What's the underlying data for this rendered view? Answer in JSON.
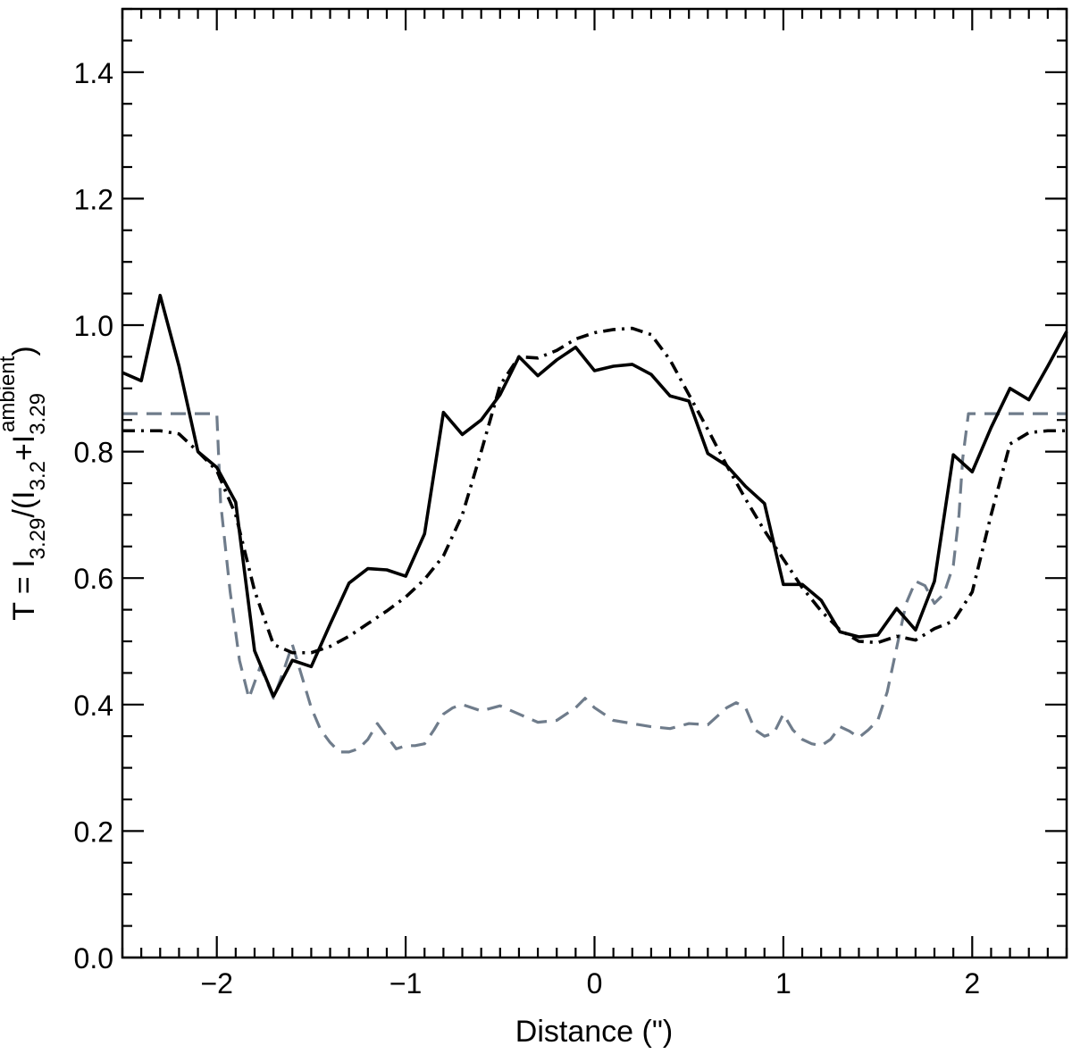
{
  "chart_data": {
    "type": "line",
    "xlabel": "Distance (\")",
    "ylabel": {
      "prefix": "T = I",
      "sub1": "3.29",
      "mid": "/(I",
      "sub2": "3.2",
      "plus": "+I",
      "sub3": "3.29",
      "sup3": "ambient",
      "suffix": ")"
    },
    "xlim": [
      -2.5,
      2.5
    ],
    "ylim": [
      0.0,
      1.5
    ],
    "x_ticks": [
      {
        "v": -2,
        "label": "−2"
      },
      {
        "v": -1,
        "label": "−1"
      },
      {
        "v": 0,
        "label": "0"
      },
      {
        "v": 1,
        "label": "1"
      },
      {
        "v": 2,
        "label": "2"
      }
    ],
    "y_ticks": [
      {
        "v": 0.0,
        "label": "0.0"
      },
      {
        "v": 0.2,
        "label": "0.2"
      },
      {
        "v": 0.4,
        "label": "0.4"
      },
      {
        "v": 0.6,
        "label": "0.6"
      },
      {
        "v": 0.8,
        "label": "0.8"
      },
      {
        "v": 1.0,
        "label": "1.0"
      },
      {
        "v": 1.2,
        "label": "1.2"
      },
      {
        "v": 1.4,
        "label": "1.4"
      }
    ],
    "grid": false,
    "colors": {
      "solid": "#000000",
      "dashdot": "#000000",
      "dashed": "#6f7c8b"
    },
    "series": [
      {
        "style": "solid",
        "x": [
          -2.5,
          -2.4,
          -2.3,
          -2.2,
          -2.1,
          -2.0,
          -1.9,
          -1.8,
          -1.7,
          -1.6,
          -1.5,
          -1.4,
          -1.3,
          -1.2,
          -1.1,
          -1.0,
          -0.9,
          -0.8,
          -0.7,
          -0.6,
          -0.5,
          -0.4,
          -0.3,
          -0.2,
          -0.1,
          0.0,
          0.1,
          0.2,
          0.3,
          0.4,
          0.5,
          0.6,
          0.7,
          0.8,
          0.9,
          1.0,
          1.1,
          1.2,
          1.3,
          1.4,
          1.5,
          1.6,
          1.7,
          1.8,
          1.9,
          2.0,
          2.1,
          2.2,
          2.3,
          2.4,
          2.5
        ],
        "y": [
          0.925,
          0.912,
          1.047,
          0.935,
          0.8,
          0.775,
          0.72,
          0.485,
          0.413,
          0.47,
          0.46,
          0.527,
          0.592,
          0.615,
          0.613,
          0.603,
          0.67,
          0.862,
          0.827,
          0.85,
          0.89,
          0.95,
          0.92,
          0.945,
          0.965,
          0.928,
          0.935,
          0.938,
          0.922,
          0.888,
          0.88,
          0.797,
          0.778,
          0.745,
          0.718,
          0.59,
          0.59,
          0.565,
          0.515,
          0.507,
          0.51,
          0.552,
          0.518,
          0.595,
          0.795,
          0.768,
          0.838,
          0.9,
          0.882,
          0.935,
          0.99
        ]
      },
      {
        "style": "dashdot",
        "x": [
          -2.5,
          -2.3,
          -2.2,
          -2.1,
          -2.0,
          -1.9,
          -1.8,
          -1.7,
          -1.6,
          -1.5,
          -1.4,
          -1.3,
          -1.2,
          -1.1,
          -1.0,
          -0.9,
          -0.8,
          -0.7,
          -0.6,
          -0.5,
          -0.4,
          -0.3,
          -0.2,
          -0.1,
          0.0,
          0.1,
          0.2,
          0.3,
          0.4,
          0.5,
          0.6,
          0.7,
          0.8,
          0.9,
          1.0,
          1.1,
          1.2,
          1.3,
          1.4,
          1.5,
          1.6,
          1.7,
          1.8,
          1.9,
          2.0,
          2.1,
          2.2,
          2.3,
          2.4,
          2.5
        ],
        "y": [
          0.833,
          0.833,
          0.828,
          0.8,
          0.77,
          0.7,
          0.58,
          0.495,
          0.482,
          0.482,
          0.492,
          0.508,
          0.528,
          0.548,
          0.57,
          0.598,
          0.635,
          0.7,
          0.8,
          0.905,
          0.95,
          0.948,
          0.96,
          0.978,
          0.988,
          0.993,
          0.995,
          0.985,
          0.945,
          0.89,
          0.835,
          0.778,
          0.725,
          0.675,
          0.63,
          0.585,
          0.548,
          0.518,
          0.5,
          0.498,
          0.508,
          0.502,
          0.52,
          0.532,
          0.578,
          0.7,
          0.812,
          0.83,
          0.833,
          0.833
        ]
      },
      {
        "style": "dashed",
        "x": [
          -2.5,
          -2.1,
          -2.0,
          -1.98,
          -1.93,
          -1.88,
          -1.83,
          -1.8,
          -1.77,
          -1.74,
          -1.7,
          -1.65,
          -1.6,
          -1.55,
          -1.5,
          -1.45,
          -1.4,
          -1.35,
          -1.3,
          -1.25,
          -1.2,
          -1.15,
          -1.1,
          -1.05,
          -1.0,
          -0.95,
          -0.9,
          -0.85,
          -0.8,
          -0.75,
          -0.7,
          -0.6,
          -0.5,
          -0.4,
          -0.3,
          -0.2,
          -0.1,
          -0.05,
          0.0,
          0.1,
          0.2,
          0.3,
          0.4,
          0.5,
          0.6,
          0.7,
          0.75,
          0.8,
          0.85,
          0.9,
          0.95,
          1.0,
          1.05,
          1.1,
          1.15,
          1.2,
          1.25,
          1.3,
          1.35,
          1.4,
          1.45,
          1.5,
          1.55,
          1.6,
          1.65,
          1.7,
          1.75,
          1.8,
          1.85,
          1.9,
          1.93,
          1.95,
          1.98,
          2.0,
          2.5
        ],
        "y": [
          0.86,
          0.86,
          0.86,
          0.72,
          0.58,
          0.47,
          0.41,
          0.435,
          0.46,
          0.44,
          0.41,
          0.45,
          0.495,
          0.445,
          0.395,
          0.36,
          0.34,
          0.325,
          0.325,
          0.33,
          0.345,
          0.37,
          0.35,
          0.33,
          0.335,
          0.335,
          0.338,
          0.36,
          0.385,
          0.395,
          0.4,
          0.39,
          0.398,
          0.385,
          0.372,
          0.375,
          0.395,
          0.41,
          0.395,
          0.375,
          0.37,
          0.365,
          0.362,
          0.37,
          0.368,
          0.395,
          0.403,
          0.395,
          0.36,
          0.35,
          0.355,
          0.385,
          0.36,
          0.345,
          0.338,
          0.335,
          0.345,
          0.365,
          0.358,
          0.348,
          0.36,
          0.375,
          0.42,
          0.49,
          0.56,
          0.595,
          0.588,
          0.56,
          0.575,
          0.62,
          0.7,
          0.79,
          0.86,
          0.86,
          0.86
        ]
      }
    ]
  }
}
